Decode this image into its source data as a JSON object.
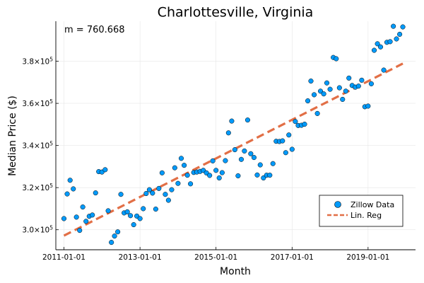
{
  "chart_data": {
    "type": "scatter",
    "title": "Charlottesville, Virginia",
    "xlabel": "Month",
    "ylabel": "Median Price ($)",
    "annotation": "m = 760.668",
    "x_ticks": [
      "2011-01-01",
      "2013-01-01",
      "2015-01-01",
      "2017-01-01",
      "2019-01-01"
    ],
    "y_ticks": [
      {
        "value": 300000,
        "label": "3.0×10",
        "exp": "5"
      },
      {
        "value": 320000,
        "label": "3.2×10",
        "exp": "5"
      },
      {
        "value": 340000,
        "label": "3.4×10",
        "exp": "5"
      },
      {
        "value": 360000,
        "label": "3.6×10",
        "exp": "5"
      },
      {
        "value": 380000,
        "label": "3.8×10",
        "exp": "5"
      }
    ],
    "xlim": [
      "2010-10-15",
      "2020-04-01"
    ],
    "ylim": [
      290500,
      399000
    ],
    "grid": true,
    "legend_position": "bottom-right",
    "series": [
      {
        "name": "Zillow Data",
        "kind": "scatter",
        "color": "#009AFA",
        "x": [
          "2011-01-01",
          "2011-02-01",
          "2011-03-01",
          "2011-04-01",
          "2011-05-01",
          "2011-06-01",
          "2011-07-01",
          "2011-08-01",
          "2011-09-01",
          "2011-10-01",
          "2011-11-01",
          "2011-12-01",
          "2012-01-01",
          "2012-02-01",
          "2012-03-01",
          "2012-04-01",
          "2012-05-01",
          "2012-06-01",
          "2012-07-01",
          "2012-08-01",
          "2012-09-01",
          "2012-10-01",
          "2012-11-01",
          "2012-12-01",
          "2013-01-01",
          "2013-02-01",
          "2013-03-01",
          "2013-04-01",
          "2013-05-01",
          "2013-06-01",
          "2013-07-01",
          "2013-08-01",
          "2013-09-01",
          "2013-10-01",
          "2013-11-01",
          "2013-12-01",
          "2014-01-01",
          "2014-02-01",
          "2014-03-01",
          "2014-04-01",
          "2014-05-01",
          "2014-06-01",
          "2014-07-01",
          "2014-08-01",
          "2014-09-01",
          "2014-10-01",
          "2014-11-01",
          "2014-12-01",
          "2015-01-01",
          "2015-02-01",
          "2015-03-01",
          "2015-04-01",
          "2015-05-01",
          "2015-06-01",
          "2015-07-01",
          "2015-08-01",
          "2015-09-01",
          "2015-10-01",
          "2015-11-01",
          "2015-12-01",
          "2016-01-01",
          "2016-02-01",
          "2016-03-01",
          "2016-04-01",
          "2016-05-01",
          "2016-06-01",
          "2016-07-01",
          "2016-08-01",
          "2016-09-01",
          "2016-10-01",
          "2016-11-01",
          "2016-12-01",
          "2017-01-01",
          "2017-02-01",
          "2017-03-01",
          "2017-04-01",
          "2017-05-01",
          "2017-06-01",
          "2017-07-01",
          "2017-08-01",
          "2017-09-01",
          "2017-10-01",
          "2017-11-01",
          "2017-12-01",
          "2018-01-01",
          "2018-02-01",
          "2018-03-01",
          "2018-04-01",
          "2018-05-01",
          "2018-06-01",
          "2018-07-01",
          "2018-08-01",
          "2018-09-01",
          "2018-10-01",
          "2018-11-01",
          "2018-12-01",
          "2019-01-01",
          "2019-02-01",
          "2019-03-01",
          "2019-04-01",
          "2019-05-01",
          "2019-06-01",
          "2019-07-01",
          "2019-08-01",
          "2019-09-01",
          "2019-10-01",
          "2019-11-01",
          "2019-12-01"
        ],
        "y": [
          305300,
          317000,
          323500,
          319400,
          306000,
          299700,
          310800,
          304000,
          306400,
          307000,
          317500,
          327600,
          327400,
          328500,
          309000,
          294000,
          297000,
          299000,
          316800,
          308000,
          308500,
          306700,
          302400,
          306500,
          305300,
          310000,
          317200,
          319000,
          317400,
          309800,
          319600,
          327000,
          316800,
          314000,
          319000,
          329400,
          322000,
          333900,
          330600,
          325900,
          321800,
          327200,
          327400,
          327700,
          328200,
          327000,
          325800,
          332700,
          328200,
          324600,
          327100,
          332800,
          346000,
          351600,
          338000,
          325600,
          333400,
          337400,
          352100,
          336100,
          334300,
          326000,
          330800,
          324600,
          325900,
          325900,
          331400,
          342000,
          341900,
          342200,
          336600,
          345000,
          338200,
          351400,
          349500,
          349600,
          350100,
          361200,
          370600,
          364100,
          355200,
          365800,
          364500,
          369700,
          366700,
          381800,
          381200,
          367400,
          361900,
          365800,
          372000,
          368500,
          367700,
          368200,
          371000,
          358400,
          358700,
          369300,
          385200,
          388300,
          386800,
          375800,
          389000,
          389300,
          396600,
          390600,
          392800,
          396300
        ]
      },
      {
        "name": "Lin. Reg",
        "kind": "line",
        "color": "#E26F46",
        "x": [
          "2011-01-01",
          "2019-12-01"
        ],
        "y": [
          297200,
          378900
        ]
      }
    ]
  }
}
